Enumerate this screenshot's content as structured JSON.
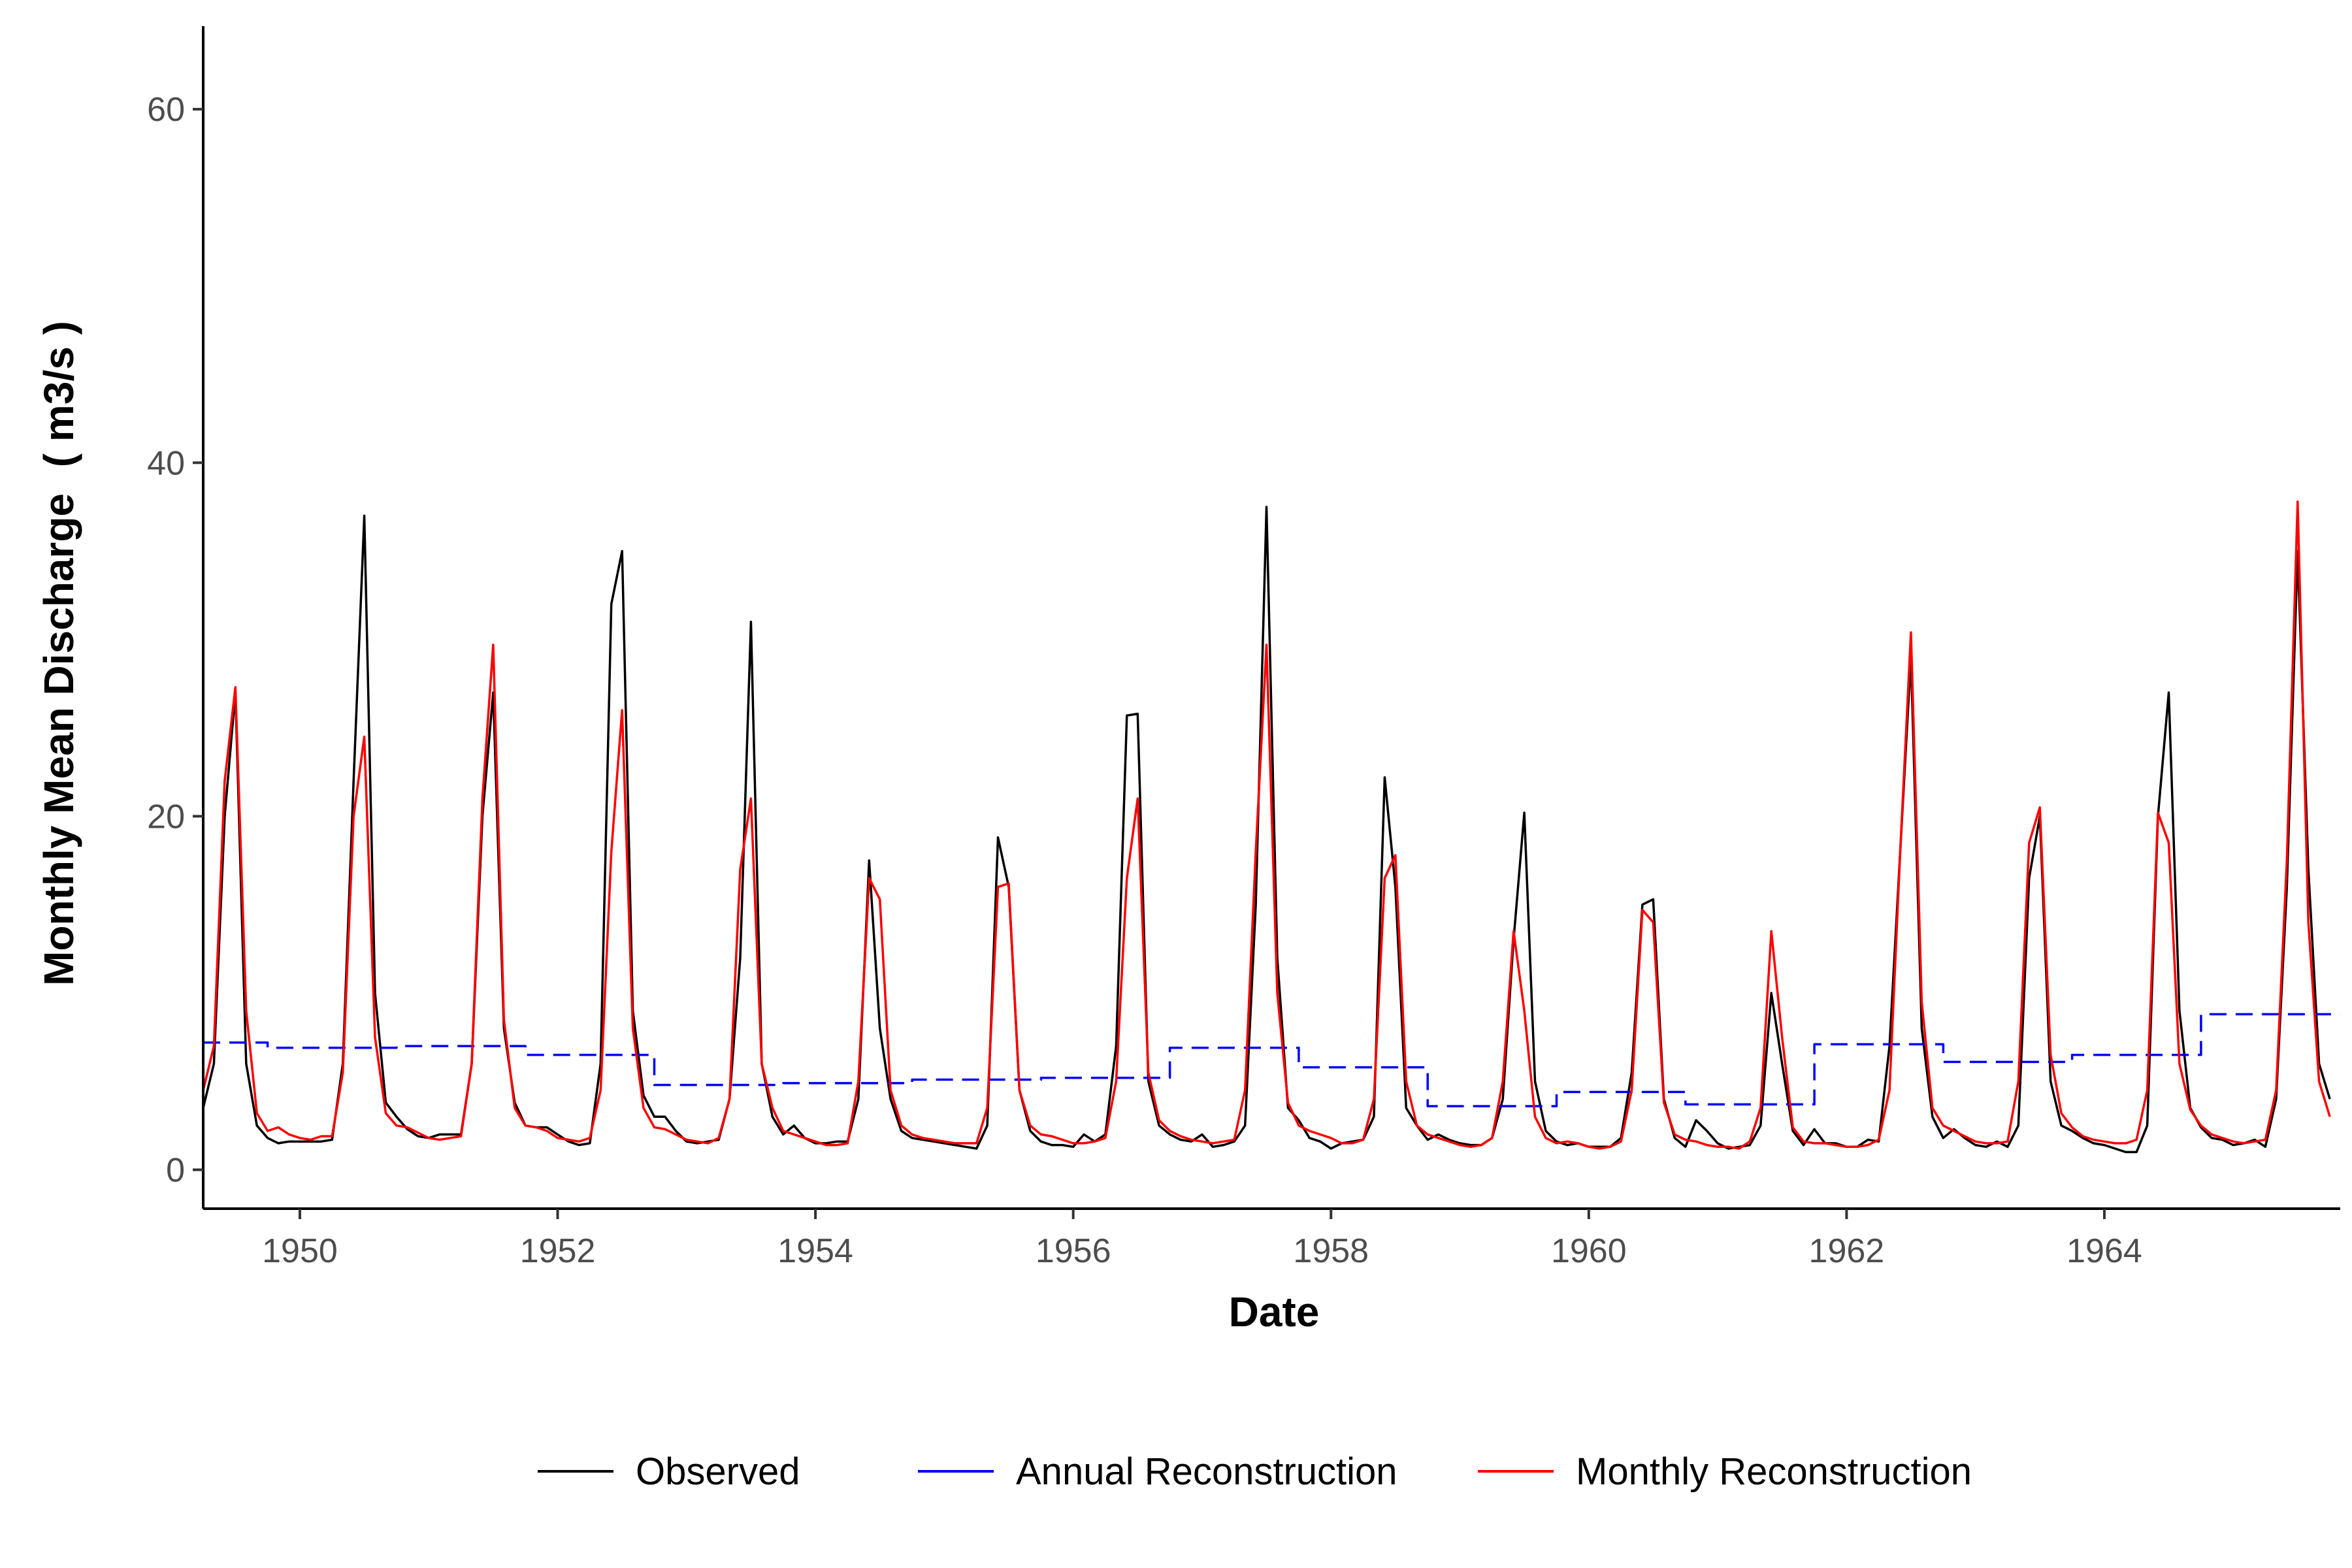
{
  "chart_data": {
    "type": "line",
    "xlabel": "Date",
    "ylabel": "Monthly Mean Discharge",
    "ylabel_unit": "( m3/s )",
    "xlim": [
      1949.25,
      1965.83
    ],
    "ylim": [
      -2.2,
      64.7
    ],
    "x_ticks": [
      1950,
      1952,
      1954,
      1956,
      1958,
      1960,
      1962,
      1964
    ],
    "y_ticks": [
      0,
      20,
      40,
      60
    ],
    "grid": false,
    "legend_position": "bottom",
    "colors": {
      "Observed": "#000000",
      "Annual Reconstruction": "#0000ff",
      "Monthly Reconstruction": "#ff0000"
    },
    "series": [
      {
        "name": "Observed",
        "style": "solid",
        "start": 1949.25,
        "step": 0.08333,
        "values": [
          3.5,
          6,
          20,
          27,
          6,
          2.5,
          1.8,
          1.5,
          1.6,
          1.6,
          1.6,
          1.6,
          1.7,
          6,
          22,
          37,
          10,
          3.8,
          3.0,
          2.3,
          1.9,
          1.8,
          2.0,
          2.0,
          2.0,
          6,
          20,
          27,
          8,
          3.8,
          2.5,
          2.4,
          2.4,
          2.0,
          1.6,
          1.4,
          1.5,
          6,
          32,
          35,
          9,
          4.2,
          3.0,
          3.0,
          2.2,
          1.6,
          1.5,
          1.6,
          1.7,
          4,
          12,
          31,
          6,
          3.0,
          2.0,
          2.5,
          1.8,
          1.5,
          1.5,
          1.6,
          1.6,
          4,
          17.5,
          8,
          4,
          2.2,
          1.8,
          1.7,
          1.6,
          1.5,
          1.4,
          1.3,
          1.2,
          2.5,
          18.8,
          16,
          4.5,
          2.2,
          1.6,
          1.4,
          1.4,
          1.3,
          2.0,
          1.6,
          2.0,
          7,
          25.7,
          25.8,
          5,
          2.5,
          2.0,
          1.7,
          1.6,
          2.0,
          1.3,
          1.4,
          1.6,
          2.5,
          15,
          37.5,
          12,
          3.5,
          2.8,
          1.8,
          1.6,
          1.2,
          1.5,
          1.6,
          1.7,
          3,
          22.2,
          16,
          3.5,
          2.5,
          1.7,
          2.0,
          1.7,
          1.5,
          1.4,
          1.4,
          1.8,
          4,
          13,
          20.2,
          5,
          2.2,
          1.6,
          1.4,
          1.5,
          1.3,
          1.3,
          1.3,
          1.8,
          5.5,
          15,
          15.3,
          4,
          1.8,
          1.3,
          2.8,
          2.2,
          1.5,
          1.2,
          1.3,
          1.4,
          2.5,
          10,
          6,
          2.2,
          1.4,
          2.3,
          1.5,
          1.5,
          1.3,
          1.3,
          1.7,
          1.6,
          7,
          18,
          29,
          8,
          3.0,
          1.8,
          2.3,
          1.8,
          1.4,
          1.3,
          1.6,
          1.3,
          2.5,
          16.5,
          20,
          5,
          2.5,
          2.2,
          1.8,
          1.5,
          1.4,
          1.2,
          1.0,
          1.0,
          2.5,
          20,
          27,
          9,
          3.5,
          2.4,
          1.8,
          1.7,
          1.4,
          1.5,
          1.7,
          1.3,
          4,
          16,
          35,
          17,
          6,
          4.0
        ]
      },
      {
        "name": "Annual Reconstruction",
        "style": "dashed",
        "steps": [
          {
            "start": 1949.25,
            "end": 1949.75,
            "value": 7.2
          },
          {
            "start": 1949.75,
            "end": 1950.75,
            "value": 6.9
          },
          {
            "start": 1950.75,
            "end": 1951.75,
            "value": 7.0
          },
          {
            "start": 1951.75,
            "end": 1952.75,
            "value": 6.5
          },
          {
            "start": 1952.75,
            "end": 1953.75,
            "value": 4.8
          },
          {
            "start": 1953.75,
            "end": 1954.75,
            "value": 4.9
          },
          {
            "start": 1954.75,
            "end": 1955.75,
            "value": 5.1
          },
          {
            "start": 1955.75,
            "end": 1956.75,
            "value": 5.2
          },
          {
            "start": 1956.75,
            "end": 1957.75,
            "value": 6.9
          },
          {
            "start": 1957.75,
            "end": 1958.75,
            "value": 5.8
          },
          {
            "start": 1958.75,
            "end": 1959.75,
            "value": 3.6
          },
          {
            "start": 1959.75,
            "end": 1960.75,
            "value": 4.4
          },
          {
            "start": 1960.75,
            "end": 1961.75,
            "value": 3.7
          },
          {
            "start": 1961.75,
            "end": 1962.75,
            "value": 7.1
          },
          {
            "start": 1962.75,
            "end": 1963.75,
            "value": 6.1
          },
          {
            "start": 1963.75,
            "end": 1964.75,
            "value": 6.5
          },
          {
            "start": 1964.75,
            "end": 1965.83,
            "value": 8.8
          }
        ]
      },
      {
        "name": "Monthly Reconstruction",
        "style": "solid",
        "start": 1949.25,
        "step": 0.08333,
        "values": [
          4.5,
          7,
          22,
          27.3,
          9,
          3.2,
          2.2,
          2.4,
          2.0,
          1.8,
          1.7,
          1.9,
          1.9,
          5.5,
          20,
          24.5,
          7.5,
          3.2,
          2.5,
          2.4,
          2.1,
          1.8,
          1.7,
          1.8,
          1.9,
          6,
          21,
          29.7,
          8.5,
          3.5,
          2.5,
          2.4,
          2.2,
          1.8,
          1.7,
          1.6,
          1.8,
          4.5,
          18,
          26,
          8,
          3.5,
          2.4,
          2.3,
          2.0,
          1.7,
          1.6,
          1.5,
          1.8,
          4,
          17,
          21,
          6,
          3.5,
          2.2,
          2.0,
          1.8,
          1.6,
          1.4,
          1.4,
          1.5,
          5,
          16.5,
          15.3,
          4.5,
          2.5,
          2.0,
          1.8,
          1.7,
          1.6,
          1.5,
          1.5,
          1.5,
          3.5,
          16,
          16.2,
          4.5,
          2.5,
          2.0,
          1.9,
          1.7,
          1.5,
          1.5,
          1.6,
          1.8,
          5,
          16.5,
          21,
          5.5,
          2.8,
          2.2,
          1.9,
          1.7,
          1.6,
          1.5,
          1.6,
          1.7,
          4.5,
          18,
          29.7,
          10,
          3.8,
          2.5,
          2.2,
          2.0,
          1.8,
          1.5,
          1.5,
          1.7,
          4,
          16.5,
          17.8,
          5,
          2.5,
          2.0,
          1.8,
          1.6,
          1.4,
          1.3,
          1.4,
          1.8,
          5,
          13.5,
          9,
          3,
          1.8,
          1.5,
          1.6,
          1.5,
          1.3,
          1.2,
          1.3,
          1.6,
          4.5,
          14.7,
          14,
          3.8,
          2.0,
          1.7,
          1.6,
          1.4,
          1.3,
          1.3,
          1.2,
          1.6,
          3.5,
          13.5,
          7.5,
          2.4,
          1.6,
          1.5,
          1.5,
          1.4,
          1.3,
          1.3,
          1.4,
          1.7,
          4.5,
          18,
          30.4,
          9.5,
          3.5,
          2.5,
          2.2,
          1.9,
          1.6,
          1.5,
          1.5,
          1.6,
          5,
          18.5,
          20.5,
          6.5,
          3.2,
          2.4,
          1.9,
          1.7,
          1.6,
          1.5,
          1.5,
          1.7,
          4.5,
          20.2,
          18.5,
          6,
          3.4,
          2.5,
          2.0,
          1.8,
          1.6,
          1.5,
          1.6,
          1.7,
          4.5,
          17.5,
          37.8,
          14,
          5,
          3.0
        ]
      }
    ]
  }
}
